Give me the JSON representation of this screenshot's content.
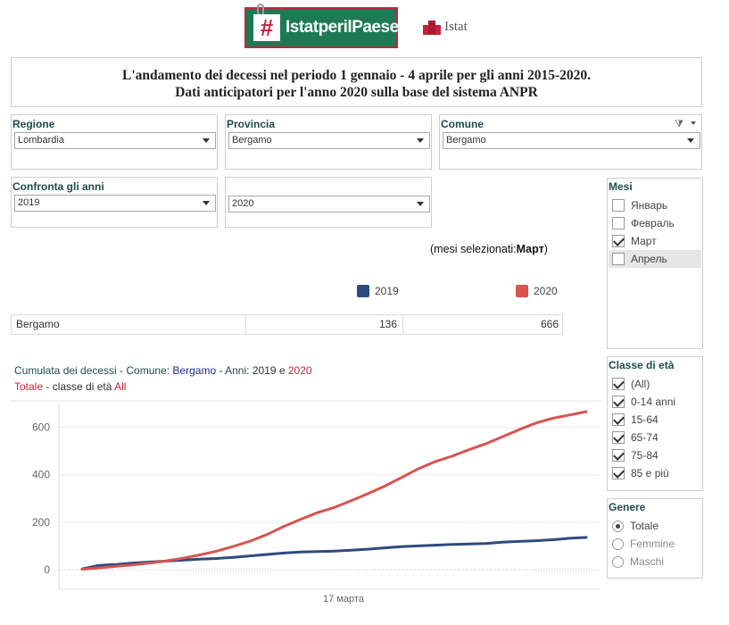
{
  "header": {
    "logo_hash": "#",
    "logo_text": "IstatperilPaese",
    "istat_text": "Istat",
    "title_line1": "L'andamento dei decessi nel periodo 1 gennaio - 4 aprile per gli anni 2015-2020.",
    "title_line2": "Dati anticipatori per l'anno 2020 sulla base del sistema ANPR"
  },
  "filters": {
    "regione": {
      "label": "Regione",
      "value": "Lombardia"
    },
    "provincia": {
      "label": "Provincia",
      "value": "Bergamo"
    },
    "comune": {
      "label": "Comune",
      "value": "Bergamo"
    },
    "confronta": {
      "label": "Confronta gli anni",
      "value": "2019"
    },
    "year2": {
      "value": "2020"
    }
  },
  "mesi": {
    "title": "Mesi",
    "options": [
      {
        "label": "Январь",
        "checked": false
      },
      {
        "label": "Февраль",
        "checked": false
      },
      {
        "label": "Март",
        "checked": true
      },
      {
        "label": "Апрель",
        "checked": false
      }
    ]
  },
  "classe_eta": {
    "title": "Classe di età",
    "options": [
      {
        "label": "(All)",
        "checked": true
      },
      {
        "label": "0-14 anni",
        "checked": true
      },
      {
        "label": "15-64",
        "checked": true
      },
      {
        "label": "65-74",
        "checked": true
      },
      {
        "label": "75-84",
        "checked": true
      },
      {
        "label": "85 e più",
        "checked": true
      }
    ]
  },
  "genere": {
    "title": "Genere",
    "options": [
      {
        "label": "Totale",
        "selected": true
      },
      {
        "label": "Femmine",
        "selected": false
      },
      {
        "label": "Maschi",
        "selected": false
      }
    ]
  },
  "mesi_selezionati": {
    "prefix": "(mesi selezionati:",
    "value": "Март",
    "suffix": ")"
  },
  "legend": {
    "y2019": "2019",
    "y2020": "2020"
  },
  "colors": {
    "y2019": "#2e4a7f",
    "y2020": "#d9534f",
    "accent_green": "#1d7a54",
    "accent_red": "#c8223b"
  },
  "table": {
    "name": "Bergamo",
    "v2019": "136",
    "v2020": "666"
  },
  "chart_caption": {
    "line1_a": "Cumulata dei decessi -  Comune: ",
    "line1_comune": "Bergamo",
    "line1_b": "  -  Anni: ",
    "line1_y1": "2019",
    "line1_e": " e ",
    "line1_y2": "2020",
    "line2_a": "Totale",
    "line2_b": " - classe di età  ",
    "line2_c": "All"
  },
  "chart_data": {
    "type": "line",
    "xlabel": "17 марта",
    "ylim": [
      0,
      700
    ],
    "yticks": [
      0,
      200,
      400,
      600
    ],
    "x": [
      1,
      2,
      3,
      4,
      5,
      6,
      7,
      8,
      9,
      10,
      11,
      12,
      13,
      14,
      15,
      16,
      17,
      18,
      19,
      20,
      21,
      22,
      23,
      24,
      25,
      26,
      27,
      28,
      29,
      30,
      31
    ],
    "series": [
      {
        "name": "2019",
        "values": [
          3,
          18,
          22,
          28,
          32,
          36,
          40,
          44,
          47,
          52,
          58,
          64,
          70,
          74,
          76,
          78,
          82,
          86,
          92,
          97,
          100,
          103,
          106,
          108,
          110,
          116,
          119,
          122,
          126,
          132,
          136
        ]
      },
      {
        "name": "2020",
        "values": [
          2,
          7,
          14,
          20,
          28,
          37,
          48,
          62,
          78,
          98,
          120,
          148,
          182,
          212,
          240,
          262,
          290,
          320,
          352,
          388,
          425,
          455,
          478,
          505,
          530,
          560,
          590,
          618,
          638,
          652,
          666
        ]
      }
    ]
  }
}
